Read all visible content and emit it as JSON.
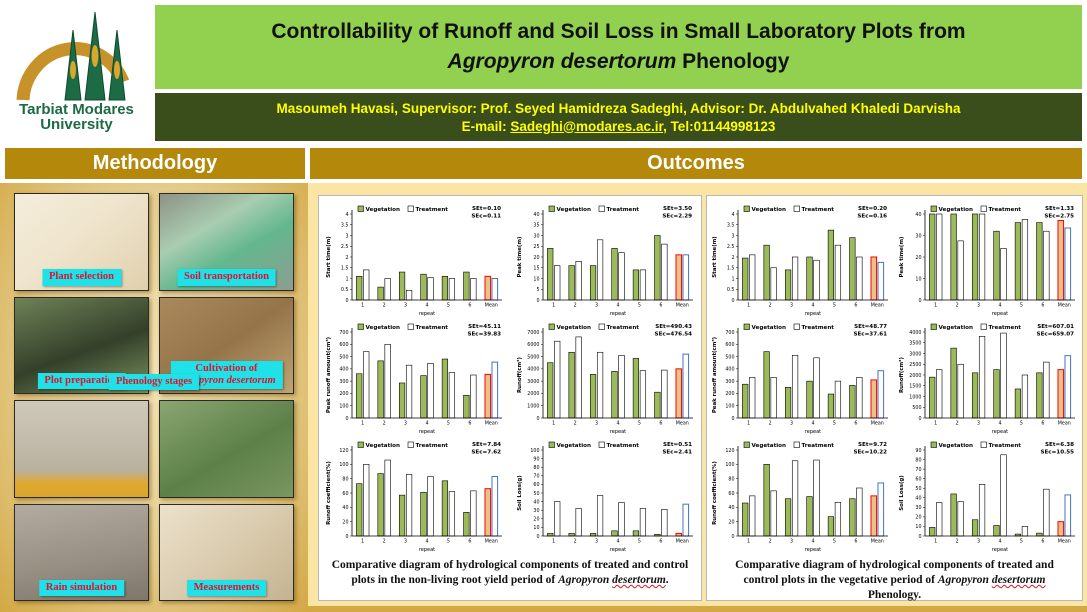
{
  "header": {
    "logo_line1": "Tarbiat Modares",
    "logo_line2": "University",
    "title_pre": "Controllability of Runoff and Soil Loss in Small Laboratory Plots from ",
    "title_italic": "Agropyron desertorum",
    "title_post": " Phenology",
    "authors_line": "Masoumeh Havasi, Supervisor: Prof. Seyed Hamidreza Sadeghi, Advisor: Dr. Abdulvahed Khaledi Darvisha",
    "email_prefix": "E-mail: ",
    "email_link": "Sadeghi@modares.ac.ir",
    "email_suffix": ", Tel:01144998123"
  },
  "sections": {
    "methodology": "Methodology",
    "outcomes": "Outcomes"
  },
  "methodology": {
    "photos": [
      {
        "label": "Plant selection"
      },
      {
        "label": "Soil transportation"
      },
      {
        "label": "Plot preparation"
      },
      {
        "label_line1": "Cultivation of",
        "label_line2": "Agropyron desertorum"
      },
      {
        "label": "Phenology stages"
      },
      {
        "label": "Rain simulation"
      },
      {
        "label": "Measurements"
      }
    ]
  },
  "colors": {
    "header_green": "#92d050",
    "header_dark_green": "#3a4e1b",
    "section_gold": "#b4880b",
    "accent_yellow": "#ffff00",
    "label_cyan": "#1ee2e8",
    "label_red": "#e3112c",
    "bar_vegetation": "#9bbb59",
    "bar_treatment": "#ffffff",
    "bar_stroke": "#000000",
    "mean_veg_stroke": "#ff0000",
    "mean_veg_fill": "#e7c388",
    "mean_treat_stroke": "#4472c4",
    "mean_treat_fill": "#ffffff"
  },
  "chart_data": {
    "type": "bar",
    "categories": [
      "1",
      "2",
      "3",
      "4",
      "5",
      "6",
      "Mean"
    ],
    "xlabel": "repeat",
    "legend": [
      "Vegetation",
      "Treatment"
    ],
    "panels": [
      {
        "id": "left",
        "caption": {
          "pre": "Comparative diagram of hydrological components of treated and control plots in the non-living root yield period of ",
          "italic": "Agropyron ",
          "wavy": "desertorum",
          "post": "."
        },
        "charts": [
          {
            "ylabel": "Start time(m)",
            "se_t": "SEt=0.10",
            "se_c": "SEc=0.11",
            "ymax": 4,
            "ystep": 0.5,
            "veg": [
              1.1,
              0.6,
              1.3,
              1.2,
              1.1,
              1.3
            ],
            "treat": [
              1.4,
              1.0,
              0.45,
              1.05,
              1.0,
              1.0
            ],
            "mean_veg": 1.1,
            "mean_treat": 1.0
          },
          {
            "ylabel": "Peak time(m)",
            "se_t": "SEt=3.50",
            "se_c": "SEc=2.29",
            "ymax": 40,
            "ystep": 5,
            "veg": [
              24,
              16,
              16,
              24,
              14,
              30
            ],
            "treat": [
              16,
              18,
              28,
              22,
              14,
              26
            ],
            "mean_veg": 21,
            "mean_treat": 21
          },
          {
            "ylabel": "Peak runoff amount(cm³)",
            "se_t": "SEt=45.11",
            "se_c": "SEc=39.83",
            "ymax": 700,
            "ystep": 100,
            "veg": [
              360,
              465,
              285,
              345,
              480,
              185
            ],
            "treat": [
              540,
              600,
              430,
              445,
              370,
              350
            ],
            "mean_veg": 355,
            "mean_treat": 455
          },
          {
            "ylabel": "Runoff(cm³)",
            "se_t": "SEt=490.43",
            "se_c": "SEc=476.54",
            "ymax": 7000,
            "ystep": 1000,
            "veg": [
              4500,
              5350,
              3550,
              3800,
              4850,
              2100
            ],
            "treat": [
              6250,
              6600,
              5350,
              5100,
              3850,
              3900
            ],
            "mean_veg": 4000,
            "mean_treat": 5200
          },
          {
            "ylabel": "Runoff coefficient(%)",
            "se_t": "SEt=7.84",
            "se_c": "SEc=7.62",
            "ymax": 120,
            "ystep": 20,
            "veg": [
              73,
              87,
              57,
              61,
              77,
              33
            ],
            "treat": [
              100,
              106,
              86,
              83,
              62,
              63
            ],
            "mean_veg": 66,
            "mean_treat": 83
          },
          {
            "ylabel": "Soil Loss(g)",
            "se_t": "SEt=0.51",
            "se_c": "SEc=2.41",
            "ymax": 100,
            "ystep": 10,
            "veg": [
              3,
              3,
              3,
              6,
              6,
              2
            ],
            "treat": [
              40,
              32,
              47,
              39,
              32,
              31
            ],
            "mean_veg": 3,
            "mean_treat": 37
          }
        ]
      },
      {
        "id": "right",
        "caption": {
          "pre": "Comparative diagram of hydrological components of treated and control plots in the vegetative period of ",
          "italic": "Agropyron ",
          "wavy": "desertorum",
          "post": " Phenology."
        },
        "charts": [
          {
            "ylabel": "Start time(m)",
            "se_t": "SEt=0.20",
            "se_c": "SEc=0.16",
            "ymax": 4,
            "ystep": 0.5,
            "veg": [
              1.95,
              2.55,
              1.4,
              2.0,
              3.25,
              2.9
            ],
            "treat": [
              2.1,
              1.5,
              2.0,
              1.85,
              2.55,
              2.0
            ],
            "mean_veg": 2.0,
            "mean_treat": 1.75
          },
          {
            "ylabel": "Peak time(m)",
            "se_t": "SEt=1.33",
            "se_c": "SEc=2.75",
            "ymax": 40,
            "ystep": 10,
            "veg": [
              40,
              40,
              40,
              32,
              36,
              36
            ],
            "treat": [
              40,
              27.5,
              40,
              24,
              37.5,
              32
            ],
            "mean_veg": 37,
            "mean_treat": 33.5
          },
          {
            "ylabel": "Peak runoff amount(cm³)",
            "se_t": "SEt=48.77",
            "se_c": "SEc=37.61",
            "ymax": 700,
            "ystep": 100,
            "veg": [
              275,
              540,
              250,
              300,
              195,
              265
            ],
            "treat": [
              330,
              330,
              510,
              490,
              300,
              330
            ],
            "mean_veg": 310,
            "mean_treat": 385
          },
          {
            "ylabel": "Runoff(cm³)",
            "se_t": "SEt=607.01",
            "se_c": "SEc=659.07",
            "ymax": 4000,
            "ystep": 500,
            "veg": [
              1900,
              3250,
              2100,
              2250,
              1350,
              2100
            ],
            "treat": [
              2250,
              2500,
              3800,
              3950,
              2000,
              2600
            ],
            "mean_veg": 2250,
            "mean_treat": 2900
          },
          {
            "ylabel": "Runoff coefficient(%)",
            "se_t": "SEt=9.72",
            "se_c": "SEc=10.22",
            "ymax": 120,
            "ystep": 20,
            "veg": [
              46,
              100,
              52,
              55,
              27,
              52
            ],
            "treat": [
              56,
              63,
              105,
              106,
              47,
              67
            ],
            "mean_veg": 56,
            "mean_treat": 74
          },
          {
            "ylabel": "Soil Loss(g)",
            "se_t": "SEt=6.38",
            "se_c": "SEc=10.55",
            "ymax": 90,
            "ystep": 10,
            "veg": [
              9,
              44,
              17,
              11,
              2,
              3
            ],
            "treat": [
              35,
              36,
              54,
              85,
              10,
              49
            ],
            "mean_veg": 15,
            "mean_treat": 43
          }
        ]
      }
    ]
  }
}
